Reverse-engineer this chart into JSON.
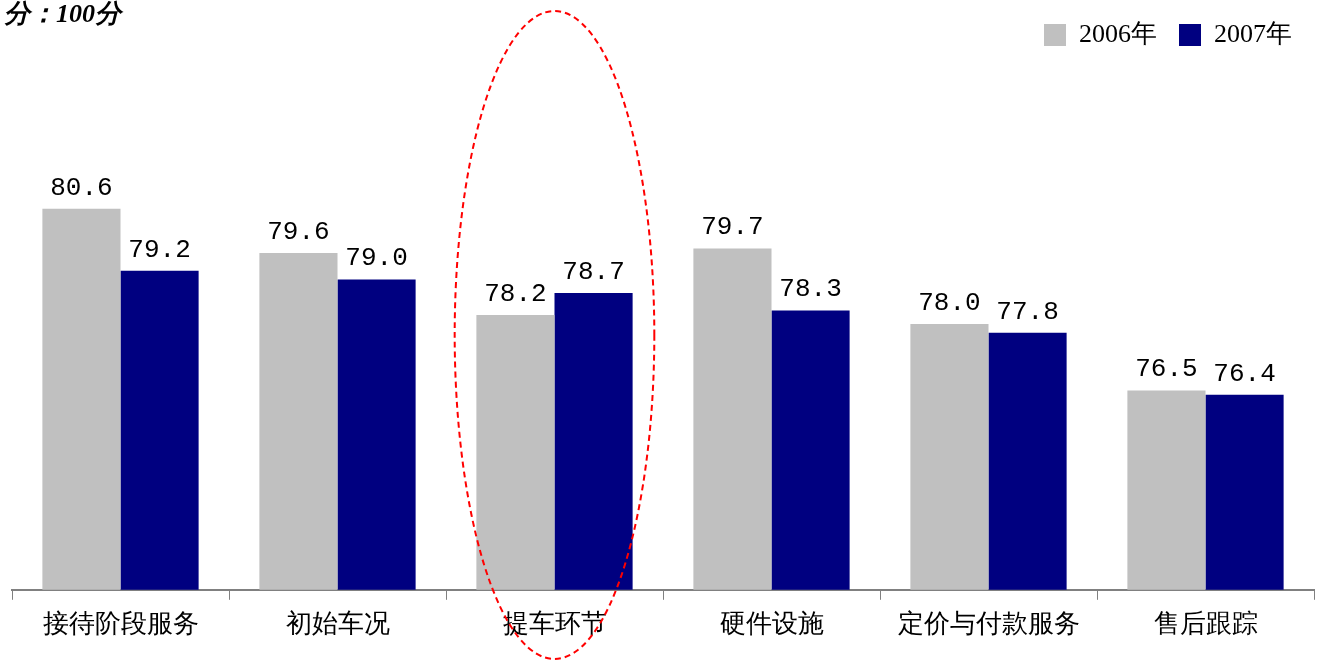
{
  "chart_data": {
    "type": "bar",
    "annotations": [
      "分：100分"
    ],
    "categories": [
      "接待阶段服务",
      "初始车况",
      "提车环节",
      "硬件设施",
      "定价与付款服务",
      "售后跟踪"
    ],
    "series": [
      {
        "name": "2006年",
        "color": "#c0c0c0",
        "values": [
          80.6,
          79.6,
          78.2,
          79.7,
          78.0,
          76.5
        ],
        "value_labels": [
          "80.6",
          "79.6",
          "78.2",
          "79.7",
          "78.0",
          "76.5"
        ]
      },
      {
        "name": "2007年",
        "color": "#000080",
        "values": [
          79.2,
          79.0,
          78.7,
          78.3,
          77.8,
          76.4
        ],
        "value_labels": [
          "79.2",
          "79.0",
          "78.7",
          "78.3",
          "77.8",
          "76.4"
        ]
      }
    ],
    "legend": "top right",
    "grid": false
  }
}
